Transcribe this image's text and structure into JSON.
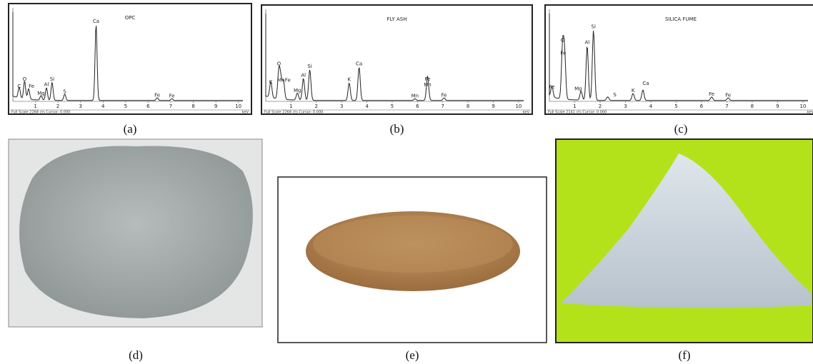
{
  "figure": {
    "panels": [
      {
        "title": "OPC",
        "peaks": [
          "C",
          "O",
          "Fe",
          "Mg",
          "Al",
          "Si",
          "S",
          "Ca",
          "Fe",
          "Fe"
        ],
        "ticks": [
          "1",
          "2",
          "3",
          "4",
          "5",
          "6",
          "7",
          "8",
          "9",
          "10"
        ],
        "footer": "Full Scale 2268 cts Cursor: 0.000",
        "unit": "keV",
        "caption": "(a)"
      },
      {
        "title": "FLY ASH",
        "peaks": [
          "K",
          "O",
          "Mn",
          "Fe",
          "Mg",
          "Al",
          "Si",
          "K",
          "Ca",
          "Mn",
          "Fe",
          "Mn",
          "Fe"
        ],
        "ticks": [
          "1",
          "2",
          "3",
          "4",
          "5",
          "6",
          "7",
          "8",
          "9",
          "10"
        ],
        "footer": "Full Scale 2268 cts Cursor: 0.000",
        "unit": "keV",
        "caption": "(b)"
      },
      {
        "title": "SILICA FUME",
        "peaks": [
          "Fe",
          "O",
          "Fe",
          "Mg",
          "Al",
          "Si",
          "K",
          "Ca",
          "S",
          "Fe",
          "Fe"
        ],
        "ticks": [
          "1",
          "2",
          "3",
          "4",
          "5",
          "6",
          "7",
          "8",
          "9",
          "10"
        ],
        "footer": "Full Scale 2141 cts Cursor: 0.000",
        "unit": "keV",
        "caption": "(c)"
      }
    ],
    "photos": [
      {
        "caption": "(d)"
      },
      {
        "caption": "(e)"
      },
      {
        "caption": "(f)"
      }
    ]
  }
}
